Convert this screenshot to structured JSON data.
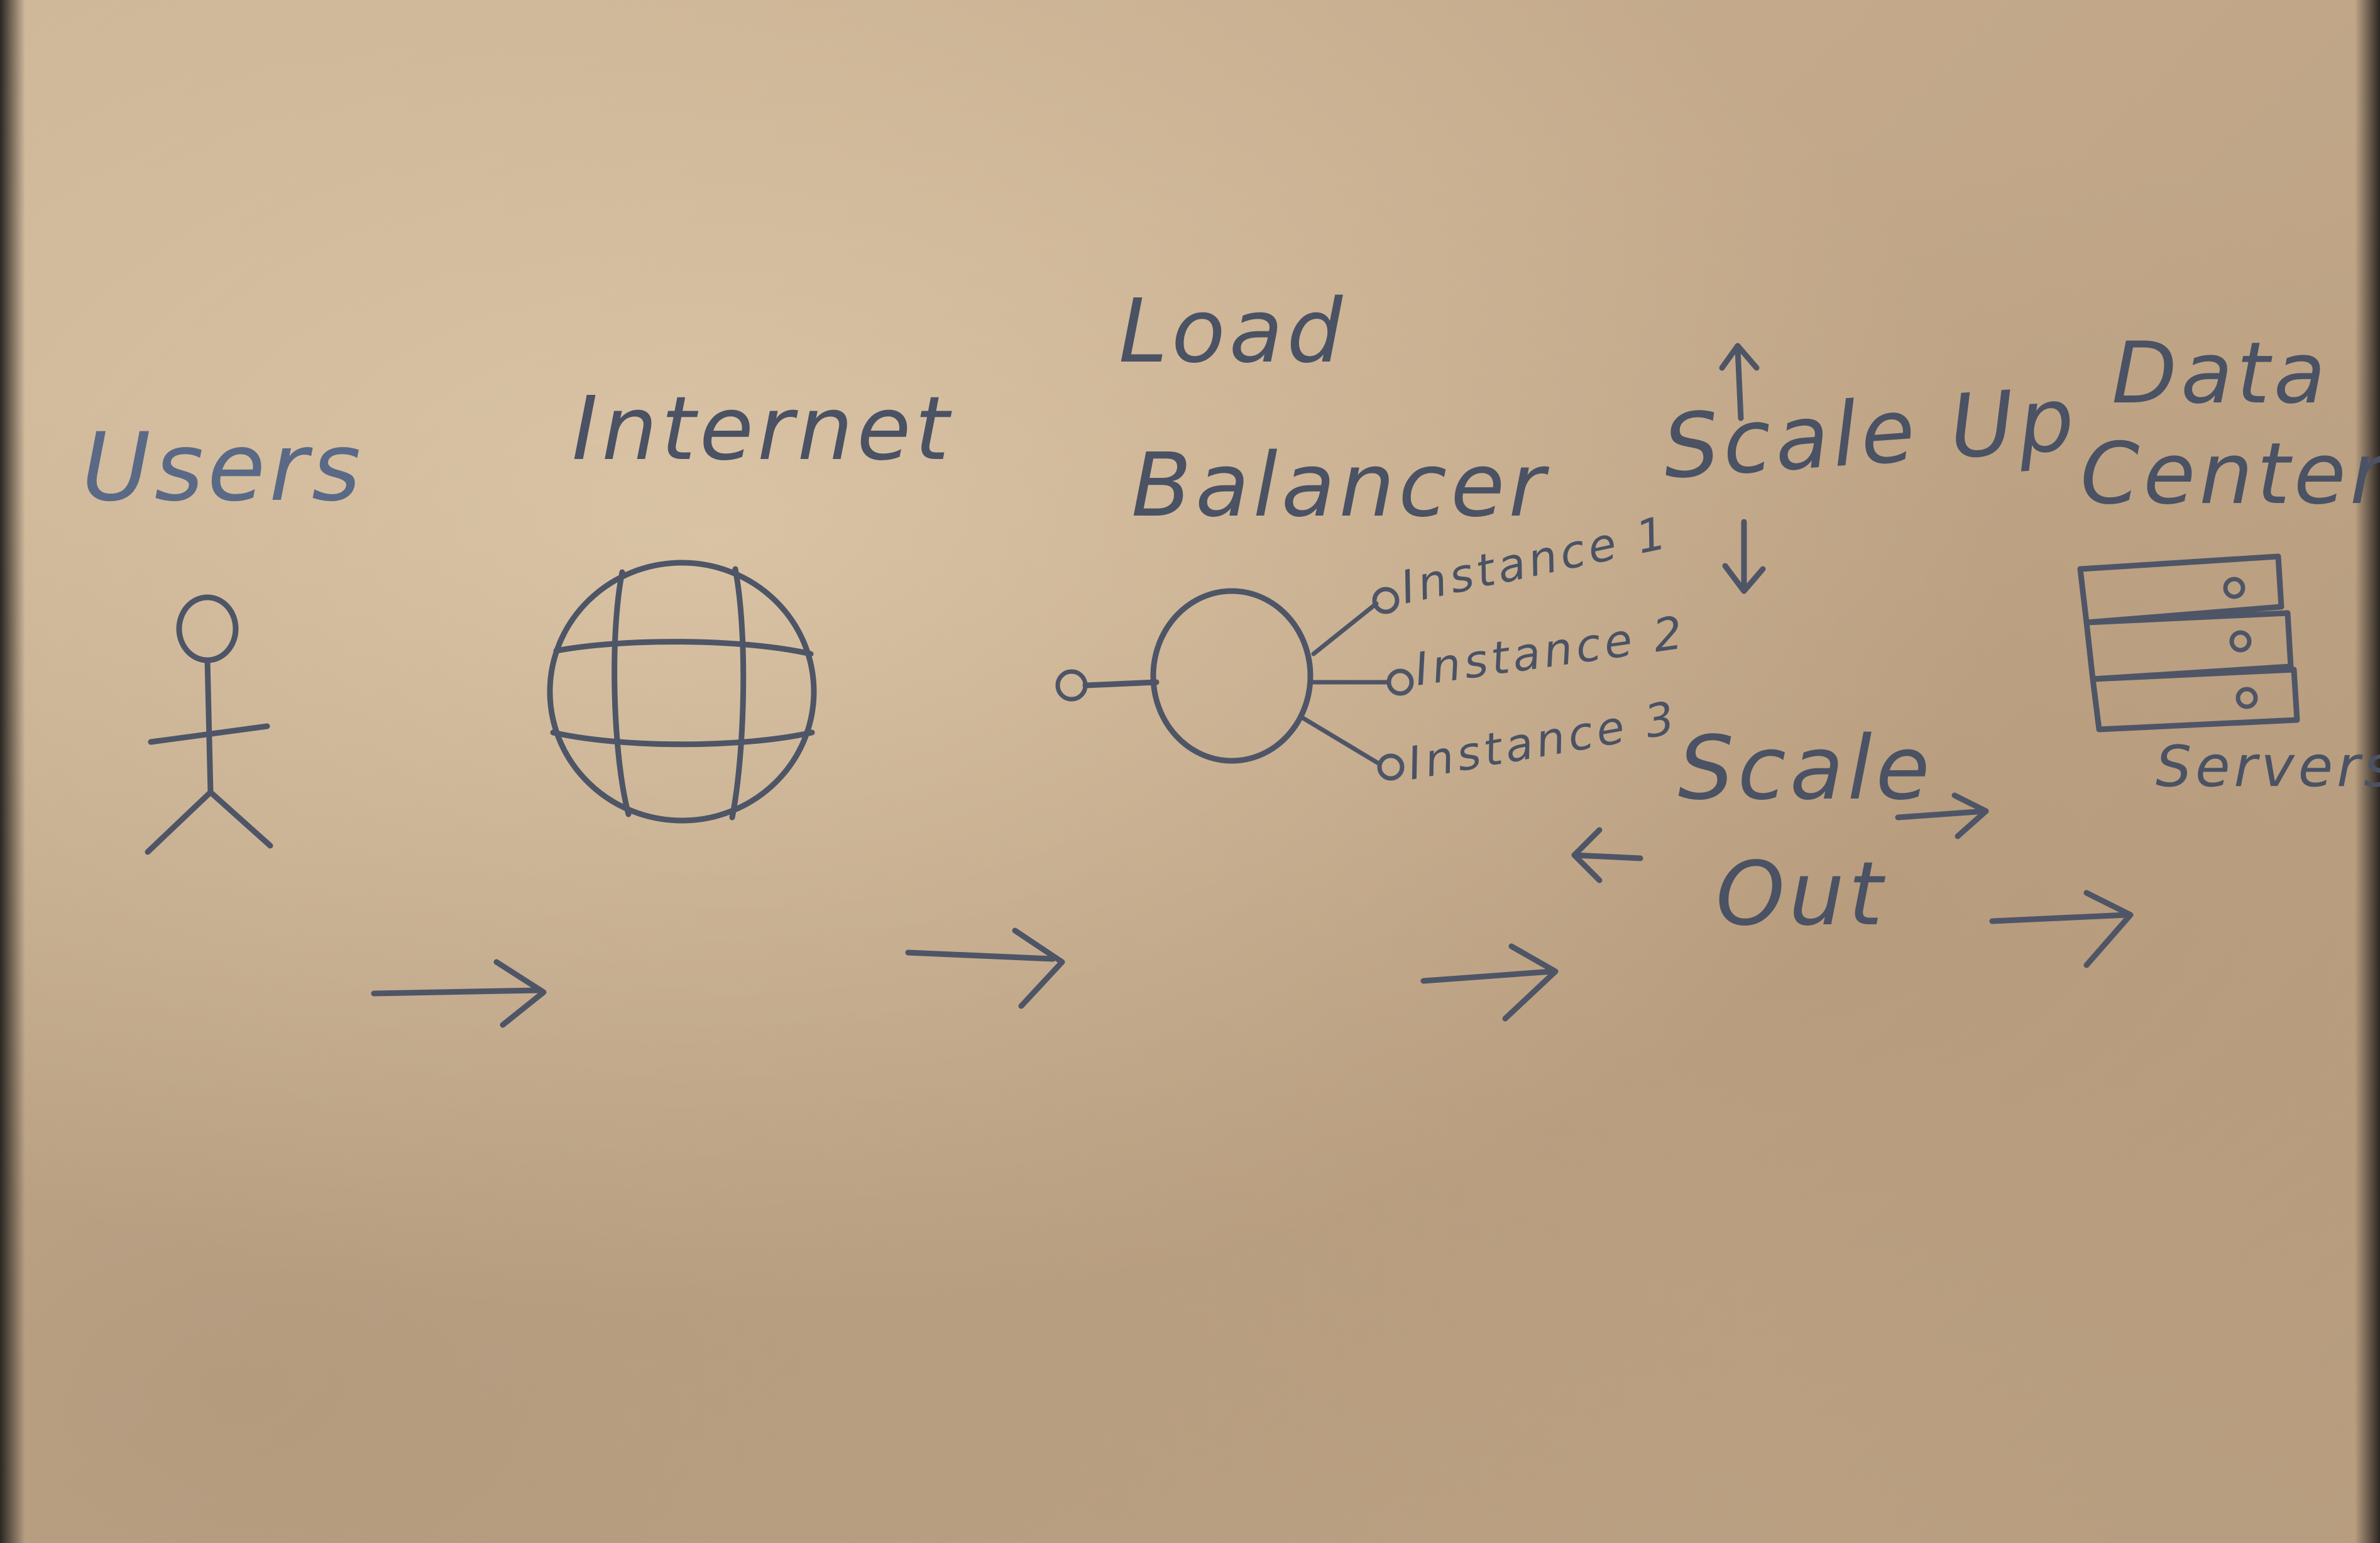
{
  "diagram": {
    "nodes": {
      "users": {
        "label": "Users",
        "icon": "stick-figure-icon"
      },
      "internet": {
        "label": "Internet",
        "icon": "globe-icon"
      },
      "load_balancer": {
        "label_line1": "Load",
        "label_line2": "Balancer",
        "icon": "load-balancer-icon",
        "instances": [
          "Instance 1",
          "Instance 2",
          "Instance 3"
        ]
      },
      "data_center": {
        "label_line1": "Data",
        "label_line2": "Center",
        "icon": "server-stack-icon",
        "servers_label": "Servers"
      }
    },
    "scaling": {
      "scale_up": "Scale Up",
      "scale_out_line1": "Scale",
      "scale_out_line2": "Out"
    },
    "ink_color": "#4e5566",
    "paper_color": "#c4aa8b"
  }
}
